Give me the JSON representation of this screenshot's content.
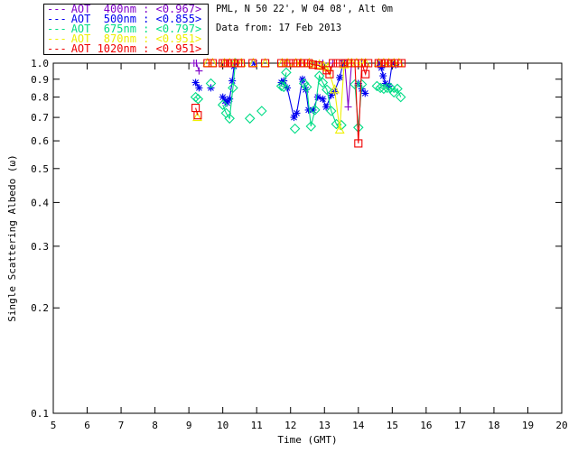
{
  "header": {
    "line1": "PML, N 50 22', W 04 08', Alt 0m",
    "line2": "Data from: 17 Feb 2013"
  },
  "legend": {
    "dash_sample": "---",
    "position": "top-left"
  },
  "chart_data": {
    "type": "line",
    "title": "",
    "xlabel": "Time (GMT)",
    "ylabel": "Single Scattering Albedo (ω)",
    "xlim": [
      5,
      20
    ],
    "ylim": [
      0.1,
      1.0
    ],
    "yscale": "log",
    "grid": false,
    "xticks": [
      5,
      6,
      7,
      8,
      9,
      10,
      11,
      12,
      13,
      14,
      15,
      16,
      17,
      18,
      19,
      20
    ],
    "ytick_labels": [
      "1.0",
      "0.9",
      "0.8",
      "0.7",
      "0.6",
      "0.5",
      "0.4",
      "0.3",
      "0.2",
      "0.1"
    ],
    "yticks": [
      1.0,
      0.9,
      0.8,
      0.7,
      0.6,
      0.5,
      0.4,
      0.3,
      0.2,
      0.1
    ],
    "axis_color": "#000000",
    "series": [
      {
        "name": "AOT 400nm",
        "legend_label": "AOT  400nm : <0.967>",
        "mean": 0.967,
        "color": "#8000C8",
        "marker": "plus",
        "points": [
          [
            9.15,
            1.0
          ],
          [
            9.22,
            1.0
          ],
          [
            9.3,
            0.95
          ],
          [
            11.9,
            1.0
          ],
          [
            12.3,
            1.0
          ],
          [
            12.85,
            1.0
          ],
          [
            12.95,
            1.0
          ],
          [
            13.25,
            1.0
          ],
          [
            13.6,
            1.0
          ],
          [
            13.7,
            0.75
          ],
          [
            13.8,
            1.0
          ],
          [
            13.9,
            1.0
          ],
          [
            14.1,
            1.0
          ]
        ]
      },
      {
        "name": "AOT 500nm",
        "legend_label": "AOT  500nm : <0.855>",
        "mean": 0.855,
        "color": "#0000F0",
        "marker": "asterisk",
        "points": [
          [
            9.2,
            0.88
          ],
          [
            9.3,
            0.85
          ],
          [
            9.65,
            0.85
          ],
          [
            10.0,
            0.8
          ],
          [
            10.07,
            0.78
          ],
          [
            10.13,
            0.77
          ],
          [
            10.2,
            0.79
          ],
          [
            10.28,
            0.89
          ],
          [
            10.33,
            0.98
          ],
          [
            10.93,
            1.0
          ],
          [
            11.73,
            0.88
          ],
          [
            11.8,
            0.89
          ],
          [
            11.9,
            0.85
          ],
          [
            12.1,
            0.7
          ],
          [
            12.18,
            0.72
          ],
          [
            12.35,
            0.9
          ],
          [
            12.45,
            0.84
          ],
          [
            12.53,
            0.735
          ],
          [
            12.66,
            0.735
          ],
          [
            12.8,
            0.8
          ],
          [
            12.95,
            0.79
          ],
          [
            13.05,
            0.75
          ],
          [
            13.2,
            0.81
          ],
          [
            13.3,
            0.83
          ],
          [
            13.45,
            0.91
          ],
          [
            13.55,
            1.0
          ],
          [
            14.0,
            0.875
          ],
          [
            14.1,
            0.845
          ],
          [
            14.2,
            0.82
          ],
          [
            14.62,
            1.0
          ],
          [
            14.68,
            0.97
          ],
          [
            14.73,
            0.92
          ],
          [
            14.8,
            0.875
          ],
          [
            14.9,
            0.86
          ],
          [
            15.0,
            1.0
          ],
          [
            15.1,
            0.99
          ]
        ]
      },
      {
        "name": "AOT 675nm",
        "legend_label": "AOT  675nm : <0.797>",
        "mean": 0.797,
        "color": "#00DC86",
        "marker": "diamond",
        "points": [
          [
            9.2,
            0.8
          ],
          [
            9.27,
            0.79
          ],
          [
            9.65,
            0.875
          ],
          [
            10.0,
            0.76
          ],
          [
            10.1,
            0.72
          ],
          [
            10.2,
            0.695
          ],
          [
            10.3,
            0.85
          ],
          [
            10.37,
            1.0
          ],
          [
            10.8,
            0.695
          ],
          [
            11.15,
            0.73
          ],
          [
            11.73,
            0.86
          ],
          [
            11.8,
            0.855
          ],
          [
            11.87,
            0.94
          ],
          [
            12.13,
            0.65
          ],
          [
            12.4,
            0.875
          ],
          [
            12.48,
            0.855
          ],
          [
            12.6,
            0.66
          ],
          [
            12.72,
            0.735
          ],
          [
            12.85,
            0.92
          ],
          [
            12.95,
            0.88
          ],
          [
            13.07,
            0.84
          ],
          [
            13.2,
            0.73
          ],
          [
            13.35,
            0.67
          ],
          [
            13.5,
            0.665
          ],
          [
            13.9,
            0.87
          ],
          [
            14.0,
            0.655
          ],
          [
            14.1,
            0.87
          ],
          [
            14.55,
            0.86
          ],
          [
            14.65,
            0.85
          ],
          [
            14.75,
            0.845
          ],
          [
            14.85,
            0.85
          ],
          [
            14.95,
            0.85
          ],
          [
            15.05,
            0.825
          ],
          [
            15.15,
            0.845
          ],
          [
            15.25,
            0.8
          ]
        ]
      },
      {
        "name": "AOT 870nm",
        "legend_label": "AOT  870nm : <0.951>",
        "mean": 0.951,
        "color": "#EFEF00",
        "marker": "triangle",
        "points": [
          [
            9.25,
            0.7
          ],
          [
            9.55,
            1.0
          ],
          [
            9.7,
            1.0
          ],
          [
            10.05,
            1.0
          ],
          [
            10.2,
            1.0
          ],
          [
            10.35,
            1.0
          ],
          [
            10.55,
            1.0
          ],
          [
            10.9,
            1.0
          ],
          [
            11.25,
            1.0
          ],
          [
            11.75,
            1.0
          ],
          [
            11.9,
            1.0
          ],
          [
            12.16,
            1.0
          ],
          [
            12.3,
            1.0
          ],
          [
            12.55,
            1.0
          ],
          [
            12.66,
            0.99
          ],
          [
            12.85,
            0.99
          ],
          [
            12.98,
            0.98
          ],
          [
            13.1,
            0.97
          ],
          [
            13.3,
            0.84
          ],
          [
            13.45,
            0.645
          ],
          [
            13.58,
            0.99
          ],
          [
            13.7,
            1.0
          ],
          [
            13.8,
            1.0
          ],
          [
            13.95,
            1.0
          ],
          [
            14.1,
            1.0
          ],
          [
            14.21,
            1.0
          ],
          [
            14.6,
            1.0
          ],
          [
            14.75,
            1.0
          ],
          [
            14.9,
            1.0
          ],
          [
            15.05,
            1.0
          ],
          [
            15.2,
            1.0
          ]
        ]
      },
      {
        "name": "AOT 1020nm",
        "legend_label": "AOT 1020nm : <0.951>",
        "mean": 0.951,
        "color": "#EF0000",
        "marker": "square",
        "points": [
          [
            9.2,
            0.745
          ],
          [
            9.26,
            0.71
          ],
          [
            9.55,
            1.0
          ],
          [
            9.7,
            1.0
          ],
          [
            10.0,
            1.0
          ],
          [
            10.07,
            1.0
          ],
          [
            10.15,
            1.0
          ],
          [
            10.25,
            1.0
          ],
          [
            10.35,
            1.0
          ],
          [
            10.45,
            1.0
          ],
          [
            10.53,
            1.0
          ],
          [
            10.88,
            1.0
          ],
          [
            11.25,
            1.0
          ],
          [
            11.73,
            1.0
          ],
          [
            11.87,
            1.0
          ],
          [
            12.0,
            1.0
          ],
          [
            12.16,
            1.0
          ],
          [
            12.29,
            1.0
          ],
          [
            12.4,
            1.0
          ],
          [
            12.53,
            1.0
          ],
          [
            12.66,
            0.99
          ],
          [
            12.83,
            0.985
          ],
          [
            13.07,
            0.955
          ],
          [
            13.15,
            0.93
          ],
          [
            13.25,
            1.0
          ],
          [
            13.4,
            1.0
          ],
          [
            13.55,
            1.0
          ],
          [
            13.7,
            1.0
          ],
          [
            13.79,
            1.0
          ],
          [
            13.9,
            1.0
          ],
          [
            14.0,
            0.59
          ],
          [
            14.1,
            1.0
          ],
          [
            14.21,
            0.93
          ],
          [
            14.29,
            1.0
          ],
          [
            14.6,
            1.0
          ],
          [
            14.68,
            1.0
          ],
          [
            14.78,
            1.0
          ],
          [
            14.88,
            1.0
          ],
          [
            14.97,
            1.0
          ],
          [
            15.07,
            1.0
          ],
          [
            15.17,
            1.0
          ],
          [
            15.27,
            1.0
          ]
        ]
      }
    ]
  }
}
